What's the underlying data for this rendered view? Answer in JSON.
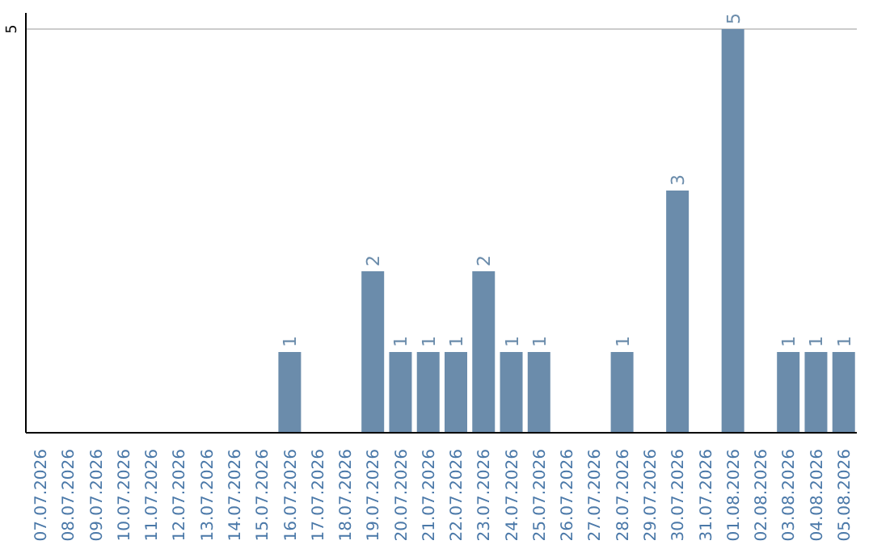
{
  "chart_data": {
    "type": "bar",
    "categories": [
      "07.07.2026",
      "08.07.2026",
      "09.07.2026",
      "10.07.2026",
      "11.07.2026",
      "12.07.2026",
      "13.07.2026",
      "14.07.2026",
      "15.07.2026",
      "16.07.2026",
      "17.07.2026",
      "18.07.2026",
      "19.07.2026",
      "20.07.2026",
      "21.07.2026",
      "22.07.2026",
      "23.07.2026",
      "24.07.2026",
      "25.07.2026",
      "26.07.2026",
      "27.07.2026",
      "28.07.2026",
      "29.07.2026",
      "30.07.2026",
      "31.07.2026",
      "01.08.2026",
      "02.08.2026",
      "03.08.2026",
      "04.08.2026",
      "05.08.2026"
    ],
    "values": [
      0,
      0,
      0,
      0,
      0,
      0,
      0,
      0,
      0,
      1,
      0,
      0,
      2,
      1,
      1,
      1,
      2,
      1,
      1,
      0,
      0,
      1,
      0,
      3,
      0,
      5,
      0,
      1,
      1,
      1
    ],
    "value_labels": [
      null,
      null,
      null,
      null,
      null,
      null,
      null,
      null,
      null,
      "1",
      null,
      null,
      "2",
      "1",
      "1",
      "1",
      "2",
      "1",
      "1",
      null,
      null,
      "1",
      null,
      "3",
      null,
      "5",
      null,
      "1",
      "1",
      "1"
    ],
    "color": "#6b8cab",
    "ylim": [
      0,
      5.2
    ],
    "yticks": [
      5
    ],
    "grid": "y"
  }
}
